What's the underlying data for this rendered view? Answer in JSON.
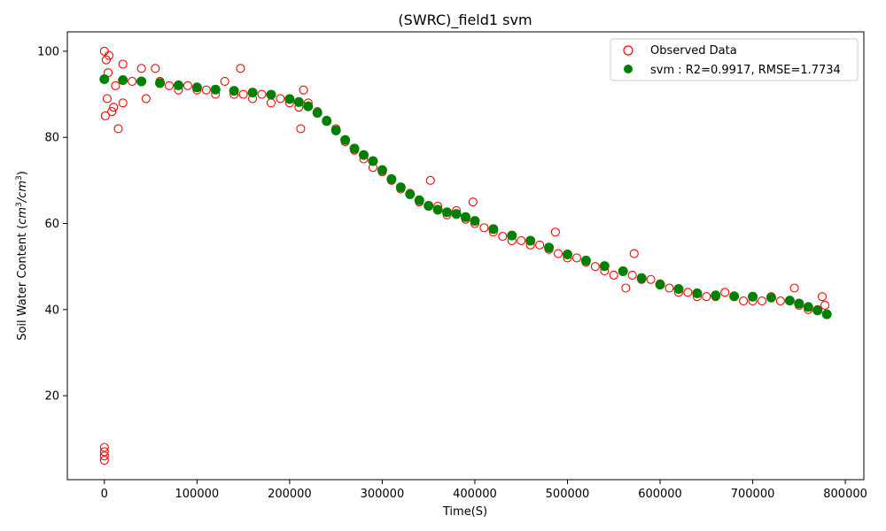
{
  "chart_data": {
    "type": "scatter",
    "title": "(SWRC)_field1 svm",
    "xlabel": "Time(S)",
    "ylabel_main": "Soil Water Content (",
    "ylabel_unit_base": "cm",
    "ylabel_unit_exp": "3",
    "ylabel_div": "/",
    "ylabel_close": ")",
    "xlim": [
      -40000,
      820000
    ],
    "ylim": [
      0.5,
      104.5
    ],
    "xticks": [
      0,
      100000,
      200000,
      300000,
      400000,
      500000,
      600000,
      700000,
      800000
    ],
    "xtick_labels": [
      "0",
      "100000",
      "200000",
      "300000",
      "400000",
      "500000",
      "600000",
      "700000",
      "800000"
    ],
    "yticks": [
      20,
      40,
      60,
      80,
      100
    ],
    "ytick_labels": [
      "20",
      "40",
      "60",
      "80",
      "100"
    ],
    "grid": false,
    "legend_position": "top-right",
    "series": [
      {
        "name": "Observed Data",
        "marker": "open-circle",
        "color": "#ff0000",
        "x": [
          0,
          2000,
          4000,
          5000,
          1000,
          3000,
          8000,
          10000,
          12000,
          15000,
          20000,
          20000,
          30000,
          40000,
          45000,
          55000,
          60000,
          70000,
          80000,
          90000,
          100000,
          110000,
          120000,
          130000,
          140000,
          147000,
          150000,
          160000,
          170000,
          180000,
          190000,
          200000,
          210000,
          212000,
          215000,
          220000,
          230000,
          240000,
          250000,
          260000,
          270000,
          280000,
          290000,
          300000,
          310000,
          320000,
          330000,
          340000,
          352000,
          360000,
          370000,
          380000,
          390000,
          398000,
          400000,
          410000,
          420000,
          430000,
          440000,
          450000,
          460000,
          470000,
          480000,
          487000,
          490000,
          500000,
          510000,
          520000,
          530000,
          540000,
          550000,
          560000,
          563000,
          570000,
          572000,
          580000,
          590000,
          600000,
          610000,
          620000,
          630000,
          640000,
          650000,
          660000,
          670000,
          680000,
          690000,
          700000,
          710000,
          720000,
          730000,
          740000,
          745000,
          750000,
          760000,
          770000,
          775000,
          778000,
          0,
          0,
          0,
          0
        ],
        "y": [
          100,
          98,
          95,
          99,
          85,
          89,
          86,
          87,
          92,
          82,
          97,
          88,
          93,
          96,
          89,
          96,
          93,
          92,
          91,
          92,
          91,
          91,
          90,
          93,
          90,
          96,
          90,
          89,
          90,
          88,
          89,
          88,
          87,
          82,
          91,
          88,
          86,
          84,
          82,
          79,
          77,
          75,
          73,
          72,
          70,
          68,
          67,
          65,
          70,
          64,
          62,
          63,
          61,
          65,
          60,
          59,
          58,
          57,
          56,
          56,
          55,
          55,
          54,
          58,
          53,
          52,
          52,
          51,
          50,
          49,
          48,
          49,
          45,
          48,
          53,
          47,
          47,
          46,
          45,
          44,
          44,
          43,
          43,
          43,
          44,
          43,
          42,
          42,
          42,
          43,
          42,
          42,
          45,
          41,
          40,
          40,
          43,
          41,
          8,
          7,
          6,
          5
        ]
      },
      {
        "name": "svm : R2=0.9917, RMSE=1.7734",
        "marker": "filled-circle",
        "color": "#008000",
        "x": [
          0,
          20000,
          40000,
          60000,
          80000,
          100000,
          120000,
          140000,
          160000,
          180000,
          200000,
          210000,
          220000,
          230000,
          240000,
          250000,
          260000,
          270000,
          280000,
          290000,
          300000,
          310000,
          320000,
          330000,
          340000,
          350000,
          360000,
          370000,
          380000,
          390000,
          400000,
          420000,
          440000,
          460000,
          480000,
          500000,
          520000,
          540000,
          560000,
          580000,
          600000,
          620000,
          640000,
          660000,
          680000,
          700000,
          720000,
          740000,
          750000,
          760000,
          770000,
          780000
        ],
        "y": [
          93.5,
          93.3,
          93.0,
          92.6,
          92.1,
          91.6,
          91.1,
          90.8,
          90.4,
          89.9,
          88.9,
          88.2,
          87.2,
          85.7,
          83.8,
          81.6,
          79.4,
          77.4,
          75.9,
          74.5,
          72.4,
          70.3,
          68.4,
          66.8,
          65.4,
          64.1,
          63.2,
          62.6,
          62.2,
          61.5,
          60.6,
          58.7,
          57.2,
          56.0,
          54.4,
          52.8,
          51.4,
          50.1,
          48.9,
          47.3,
          45.8,
          44.8,
          43.8,
          43.3,
          43.1,
          43.0,
          42.8,
          42.1,
          41.4,
          40.6,
          39.8,
          38.9
        ]
      }
    ]
  }
}
